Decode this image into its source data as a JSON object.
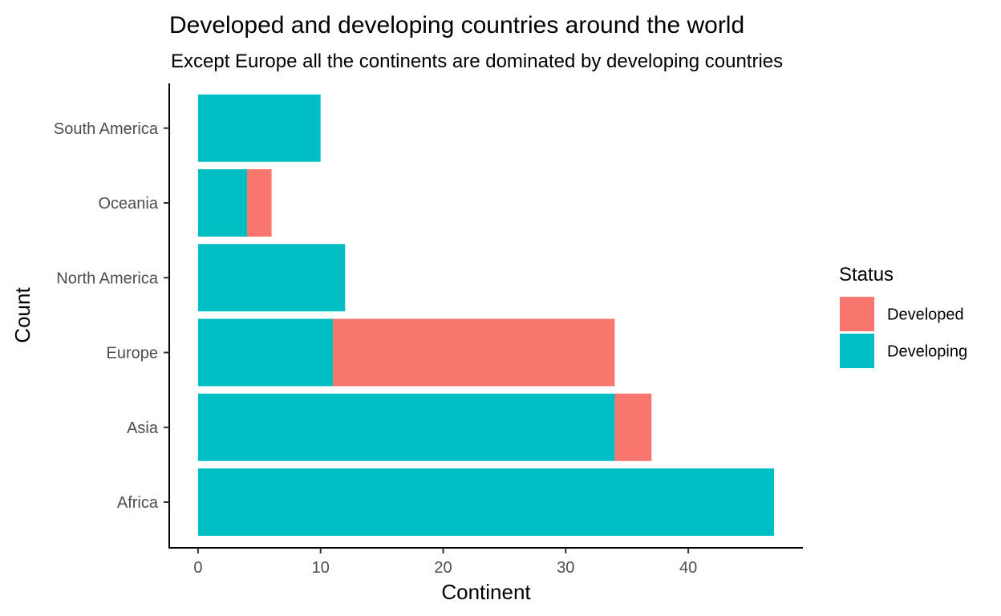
{
  "chart_data": {
    "type": "bar",
    "orientation": "horizontal",
    "stacked": true,
    "title": "Developed and developing countries around the world",
    "subtitle": "Except Europe all the continents are dominated by developing countries",
    "xlabel": "Continent",
    "ylabel": "Count",
    "categories": [
      "Africa",
      "Asia",
      "Europe",
      "North America",
      "Oceania",
      "South America"
    ],
    "series": [
      {
        "name": "Developing",
        "color": "#00BFC4",
        "values": [
          47,
          34,
          11,
          12,
          4,
          10
        ]
      },
      {
        "name": "Developed",
        "color": "#F8766D",
        "values": [
          0,
          3,
          23,
          0,
          2,
          0
        ]
      }
    ],
    "xlim": [
      -2.35,
      49.35
    ],
    "xticks": [
      0,
      10,
      20,
      30,
      40
    ],
    "grid": false,
    "legend": {
      "title": "Status",
      "position": "right",
      "entries": [
        {
          "label": "Developed",
          "color": "#F8766D"
        },
        {
          "label": "Developing",
          "color": "#00BFC4"
        }
      ]
    }
  }
}
